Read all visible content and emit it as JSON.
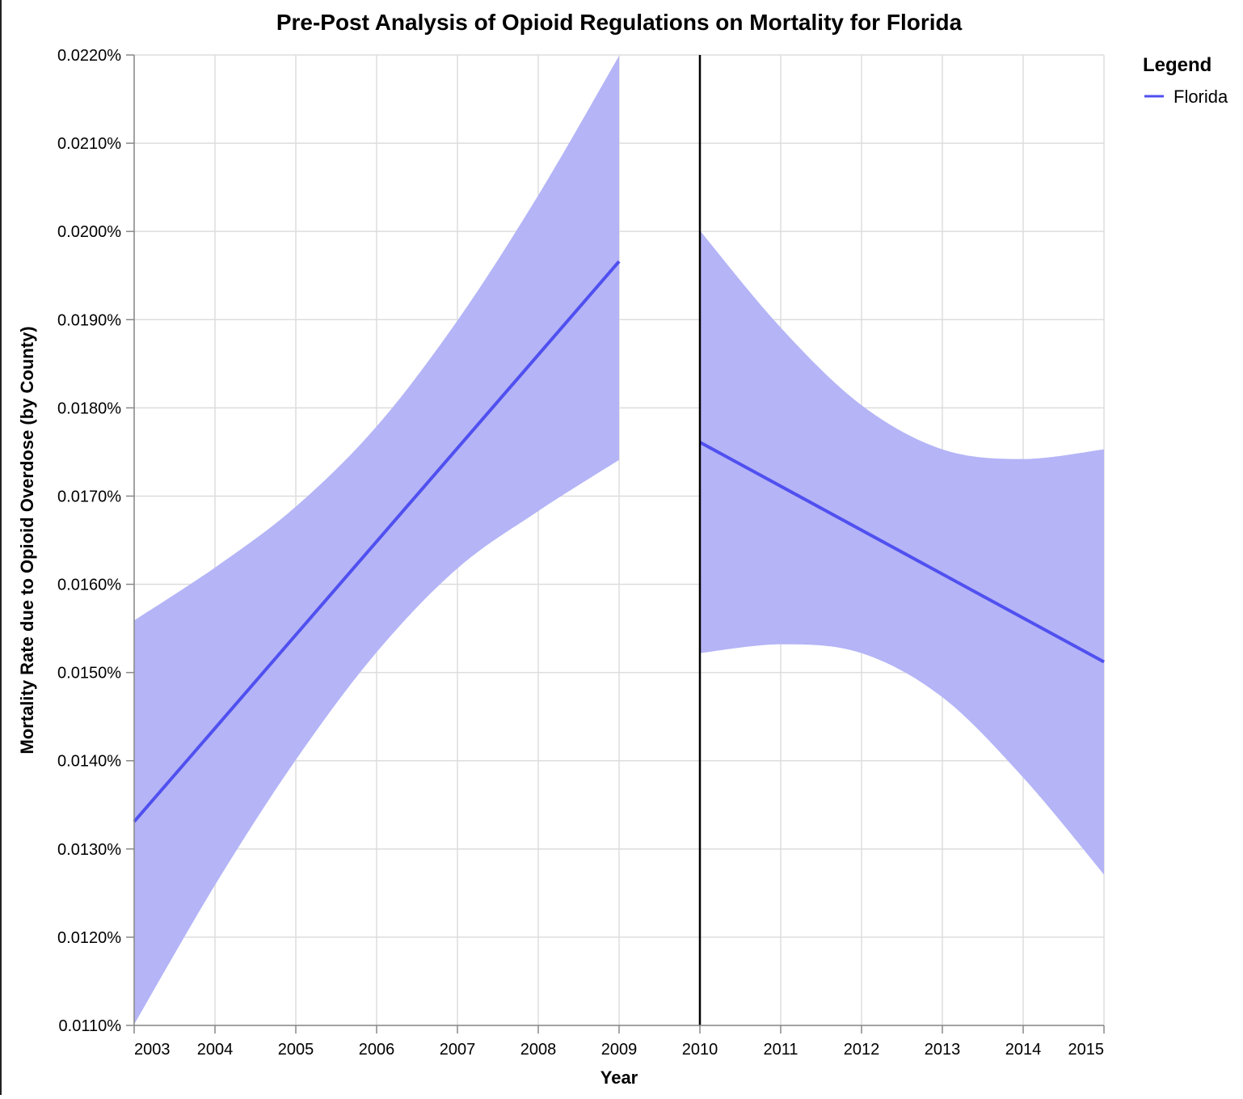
{
  "chart_data": {
    "type": "line",
    "title": "Pre-Post Analysis of Opioid Regulations on Mortality for Florida",
    "xlabel": "Year",
    "ylabel": "Mortality Rate due to Opioid Overdose (by County)",
    "xlim": [
      2003,
      2015
    ],
    "ylim": [
      0.011,
      0.022
    ],
    "x_ticks": [
      2003,
      2004,
      2005,
      2006,
      2007,
      2008,
      2009,
      2010,
      2011,
      2012,
      2013,
      2014,
      2015
    ],
    "x_tick_labels": [
      "2003",
      "2004",
      "2005",
      "2006",
      "2007",
      "2008",
      "2009",
      "2010",
      "2011",
      "2012",
      "2013",
      "2014",
      "2015"
    ],
    "y_ticks": [
      0.011,
      0.012,
      0.013,
      0.014,
      0.015,
      0.016,
      0.017,
      0.018,
      0.019,
      0.02,
      0.021,
      0.022
    ],
    "y_tick_labels": [
      "0.0110%",
      "0.0120%",
      "0.0130%",
      "0.0140%",
      "0.0150%",
      "0.0160%",
      "0.0170%",
      "0.0180%",
      "0.0190%",
      "0.0200%",
      "0.0210%",
      "0.0220%"
    ],
    "grid": true,
    "policy_change_year": 2010,
    "legend": {
      "title": "Legend",
      "position": "right"
    },
    "series": [
      {
        "name": "Florida",
        "color": "#5050f0",
        "band_color": "#b0b0f7",
        "segments": [
          {
            "x": [
              2003,
              2009
            ],
            "y": [
              0.01331,
              0.01966
            ],
            "band_x": [
              2003,
              2004,
              2005,
              2006,
              2007,
              2008,
              2009
            ],
            "band_upper": [
              0.01559,
              0.01619,
              0.01688,
              0.01779,
              0.01899,
              0.02041,
              0.02199
            ],
            "band_lower": [
              0.01101,
              0.01259,
              0.01401,
              0.01523,
              0.01618,
              0.01683,
              0.01741
            ]
          },
          {
            "x": [
              2010,
              2015
            ],
            "y": [
              0.01761,
              0.01512
            ],
            "band_x": [
              2010,
              2011,
              2012,
              2013,
              2014,
              2015
            ],
            "band_upper": [
              0.02001,
              0.01891,
              0.01803,
              0.01753,
              0.01742,
              0.01753
            ],
            "band_lower": [
              0.01522,
              0.01532,
              0.01522,
              0.01472,
              0.01381,
              0.01271
            ]
          }
        ]
      }
    ]
  }
}
